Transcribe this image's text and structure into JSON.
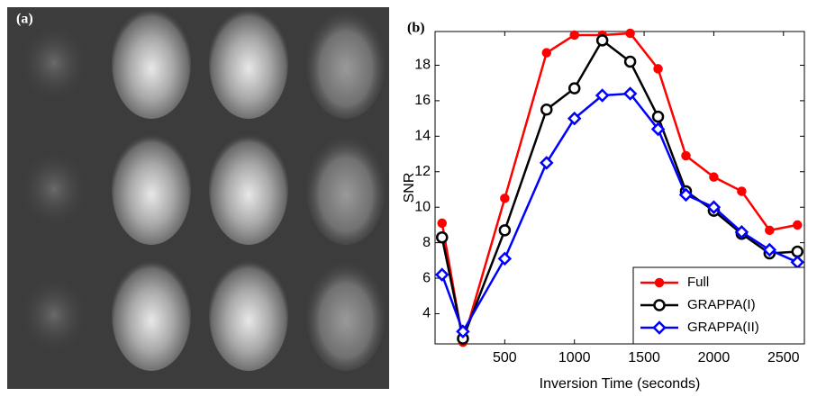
{
  "image_panel": {
    "label": "(a)"
  },
  "chart_data": {
    "type": "line",
    "panel_label": "(b)",
    "x_label": "Inversion Time (seconds)",
    "y_label": "SNR",
    "x": [
      50,
      200,
      500,
      800,
      1000,
      1200,
      1400,
      1600,
      1800,
      2000,
      2200,
      2400,
      2600
    ],
    "series": [
      {
        "name": "Full",
        "color": "#ff0000",
        "marker": "filled-circle",
        "values": [
          9.1,
          2.4,
          10.5,
          18.7,
          19.7,
          19.7,
          19.8,
          17.8,
          12.9,
          11.7,
          10.9,
          8.7,
          9.0
        ]
      },
      {
        "name": "GRAPPA(I)",
        "color": "#000000",
        "marker": "circle",
        "values": [
          8.3,
          2.6,
          8.7,
          15.5,
          16.7,
          19.4,
          18.2,
          15.1,
          10.9,
          9.8,
          8.5,
          7.4,
          7.5
        ]
      },
      {
        "name": "GRAPPA(II)",
        "color": "#0000ff",
        "marker": "diamond",
        "values": [
          6.2,
          3.0,
          7.1,
          12.5,
          15.0,
          16.3,
          16.4,
          14.4,
          10.7,
          10.0,
          8.6,
          7.6,
          6.9
        ]
      }
    ],
    "xlim": [
      0,
      2650
    ],
    "xticks": [
      500,
      1000,
      1500,
      2000,
      2500
    ],
    "ylim": [
      2.3,
      19.9
    ],
    "yticks": [
      4,
      6,
      8,
      10,
      12,
      14,
      16,
      18
    ],
    "legend": "lower-right",
    "grid": false
  }
}
